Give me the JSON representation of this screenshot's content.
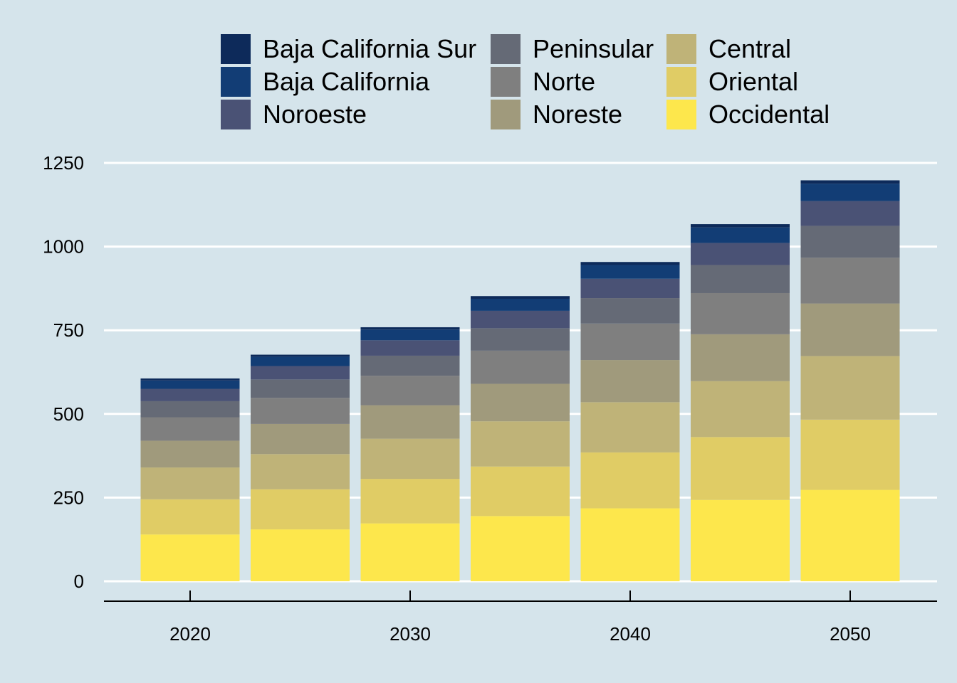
{
  "chart_data": {
    "type": "bar",
    "stacked": true,
    "x": [
      2020,
      2025,
      2030,
      2035,
      2040,
      2045,
      2050
    ],
    "x_ticks": [
      "2020",
      "2030",
      "2040",
      "2050"
    ],
    "y_ticks": [
      "0",
      "250",
      "500",
      "750",
      "1000",
      "1250"
    ],
    "ylim": [
      0,
      1300
    ],
    "grid": "horizontal",
    "legend_position": "top",
    "series": [
      {
        "name": "Occidental",
        "color": "#fde74c",
        "values": [
          140,
          155,
          173,
          195,
          218,
          243,
          273
        ]
      },
      {
        "name": "Oriental",
        "color": "#e0cc65",
        "values": [
          105,
          120,
          133,
          148,
          167,
          188,
          210
        ]
      },
      {
        "name": "Central",
        "color": "#bfb378",
        "values": [
          95,
          105,
          120,
          135,
          150,
          167,
          190
        ]
      },
      {
        "name": "Noreste",
        "color": "#a09a7c",
        "values": [
          80,
          90,
          100,
          112,
          126,
          140,
          157
        ]
      },
      {
        "name": "Norte",
        "color": "#7f7f7f",
        "values": [
          70,
          78,
          88,
          99,
          109,
          123,
          137
        ]
      },
      {
        "name": "Peninsular",
        "color": "#656a76",
        "values": [
          48,
          55,
          60,
          67,
          76,
          84,
          95
        ]
      },
      {
        "name": "Noroeste",
        "color": "#4a5275",
        "values": [
          37,
          40,
          46,
          52,
          58,
          66,
          74
        ]
      },
      {
        "name": "Baja California",
        "color": "#123d75",
        "values": [
          25,
          28,
          32,
          36,
          41,
          46,
          52
        ]
      },
      {
        "name": "Baja California Sur",
        "color": "#0d2a5a",
        "values": [
          6,
          6,
          7,
          8,
          9,
          10,
          10
        ]
      }
    ],
    "legend_order": [
      "Baja California Sur",
      "Baja California",
      "Noroeste",
      "Peninsular",
      "Norte",
      "Noreste",
      "Central",
      "Oriental",
      "Occidental"
    ]
  }
}
